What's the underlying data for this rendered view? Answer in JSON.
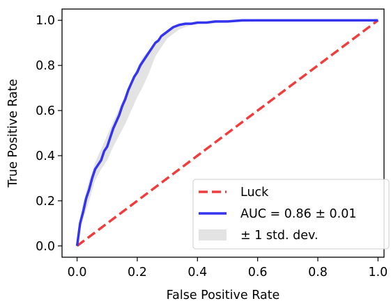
{
  "chart_data": {
    "type": "line",
    "xlabel": "False Positive Rate",
    "ylabel": "True Positive Rate",
    "xlim": [
      -0.05,
      1.02
    ],
    "ylim": [
      -0.05,
      1.05
    ],
    "x_ticks": [
      0.0,
      0.2,
      0.4,
      0.6,
      0.8,
      1.0
    ],
    "x_tick_labels": [
      "0.0",
      "0.2",
      "0.4",
      "0.6",
      "0.8",
      "1.0"
    ],
    "y_ticks": [
      0.0,
      0.2,
      0.4,
      0.6,
      0.8,
      1.0
    ],
    "y_tick_labels": [
      "0.0",
      "0.2",
      "0.4",
      "0.6",
      "0.8",
      "1.0"
    ],
    "grid": false,
    "legend_placement": "lower-right",
    "series": [
      {
        "name": "Luck",
        "style": "dashed",
        "color": "#f03c3c",
        "x": [
          0.0,
          1.0
        ],
        "y": [
          0.0,
          1.0
        ]
      },
      {
        "name": "AUC = 0.86 ± 0.01",
        "style": "solid",
        "color": "#3434f0",
        "x": [
          0.0,
          0.005,
          0.01,
          0.02,
          0.03,
          0.04,
          0.05,
          0.06,
          0.07,
          0.08,
          0.09,
          0.1,
          0.11,
          0.12,
          0.13,
          0.14,
          0.15,
          0.16,
          0.17,
          0.18,
          0.19,
          0.2,
          0.21,
          0.22,
          0.23,
          0.24,
          0.25,
          0.26,
          0.27,
          0.28,
          0.3,
          0.32,
          0.34,
          0.36,
          0.38,
          0.4,
          0.43,
          0.46,
          0.5,
          0.55,
          0.6,
          0.7,
          0.8,
          0.9,
          0.98,
          1.0
        ],
        "y": [
          0.0,
          0.05,
          0.1,
          0.15,
          0.21,
          0.25,
          0.3,
          0.34,
          0.36,
          0.38,
          0.42,
          0.44,
          0.48,
          0.52,
          0.55,
          0.58,
          0.62,
          0.65,
          0.69,
          0.72,
          0.75,
          0.77,
          0.8,
          0.82,
          0.84,
          0.86,
          0.88,
          0.9,
          0.91,
          0.93,
          0.95,
          0.97,
          0.98,
          0.985,
          0.985,
          0.99,
          0.99,
          0.995,
          0.995,
          1.0,
          1.0,
          1.0,
          1.0,
          1.0,
          1.0,
          1.0
        ]
      }
    ],
    "bands": [
      {
        "name": "± 1 std. dev.",
        "color": "#e3e3e3",
        "x": [
          0.0,
          0.01,
          0.02,
          0.04,
          0.06,
          0.08,
          0.1,
          0.12,
          0.14,
          0.16,
          0.18,
          0.2,
          0.22,
          0.24,
          0.26,
          0.28,
          0.3,
          0.34,
          0.38,
          0.42,
          0.5,
          0.6,
          0.8,
          1.0
        ],
        "upper": [
          0.0,
          0.13,
          0.19,
          0.29,
          0.37,
          0.43,
          0.49,
          0.55,
          0.61,
          0.67,
          0.73,
          0.79,
          0.84,
          0.87,
          0.89,
          0.92,
          0.95,
          0.98,
          0.99,
          0.995,
          1.0,
          1.0,
          1.0,
          1.0
        ],
        "lower": [
          0.0,
          0.07,
          0.12,
          0.2,
          0.29,
          0.34,
          0.38,
          0.44,
          0.49,
          0.54,
          0.6,
          0.66,
          0.71,
          0.77,
          0.84,
          0.88,
          0.92,
          0.96,
          0.98,
          0.985,
          0.99,
          0.995,
          1.0,
          1.0
        ]
      }
    ]
  }
}
